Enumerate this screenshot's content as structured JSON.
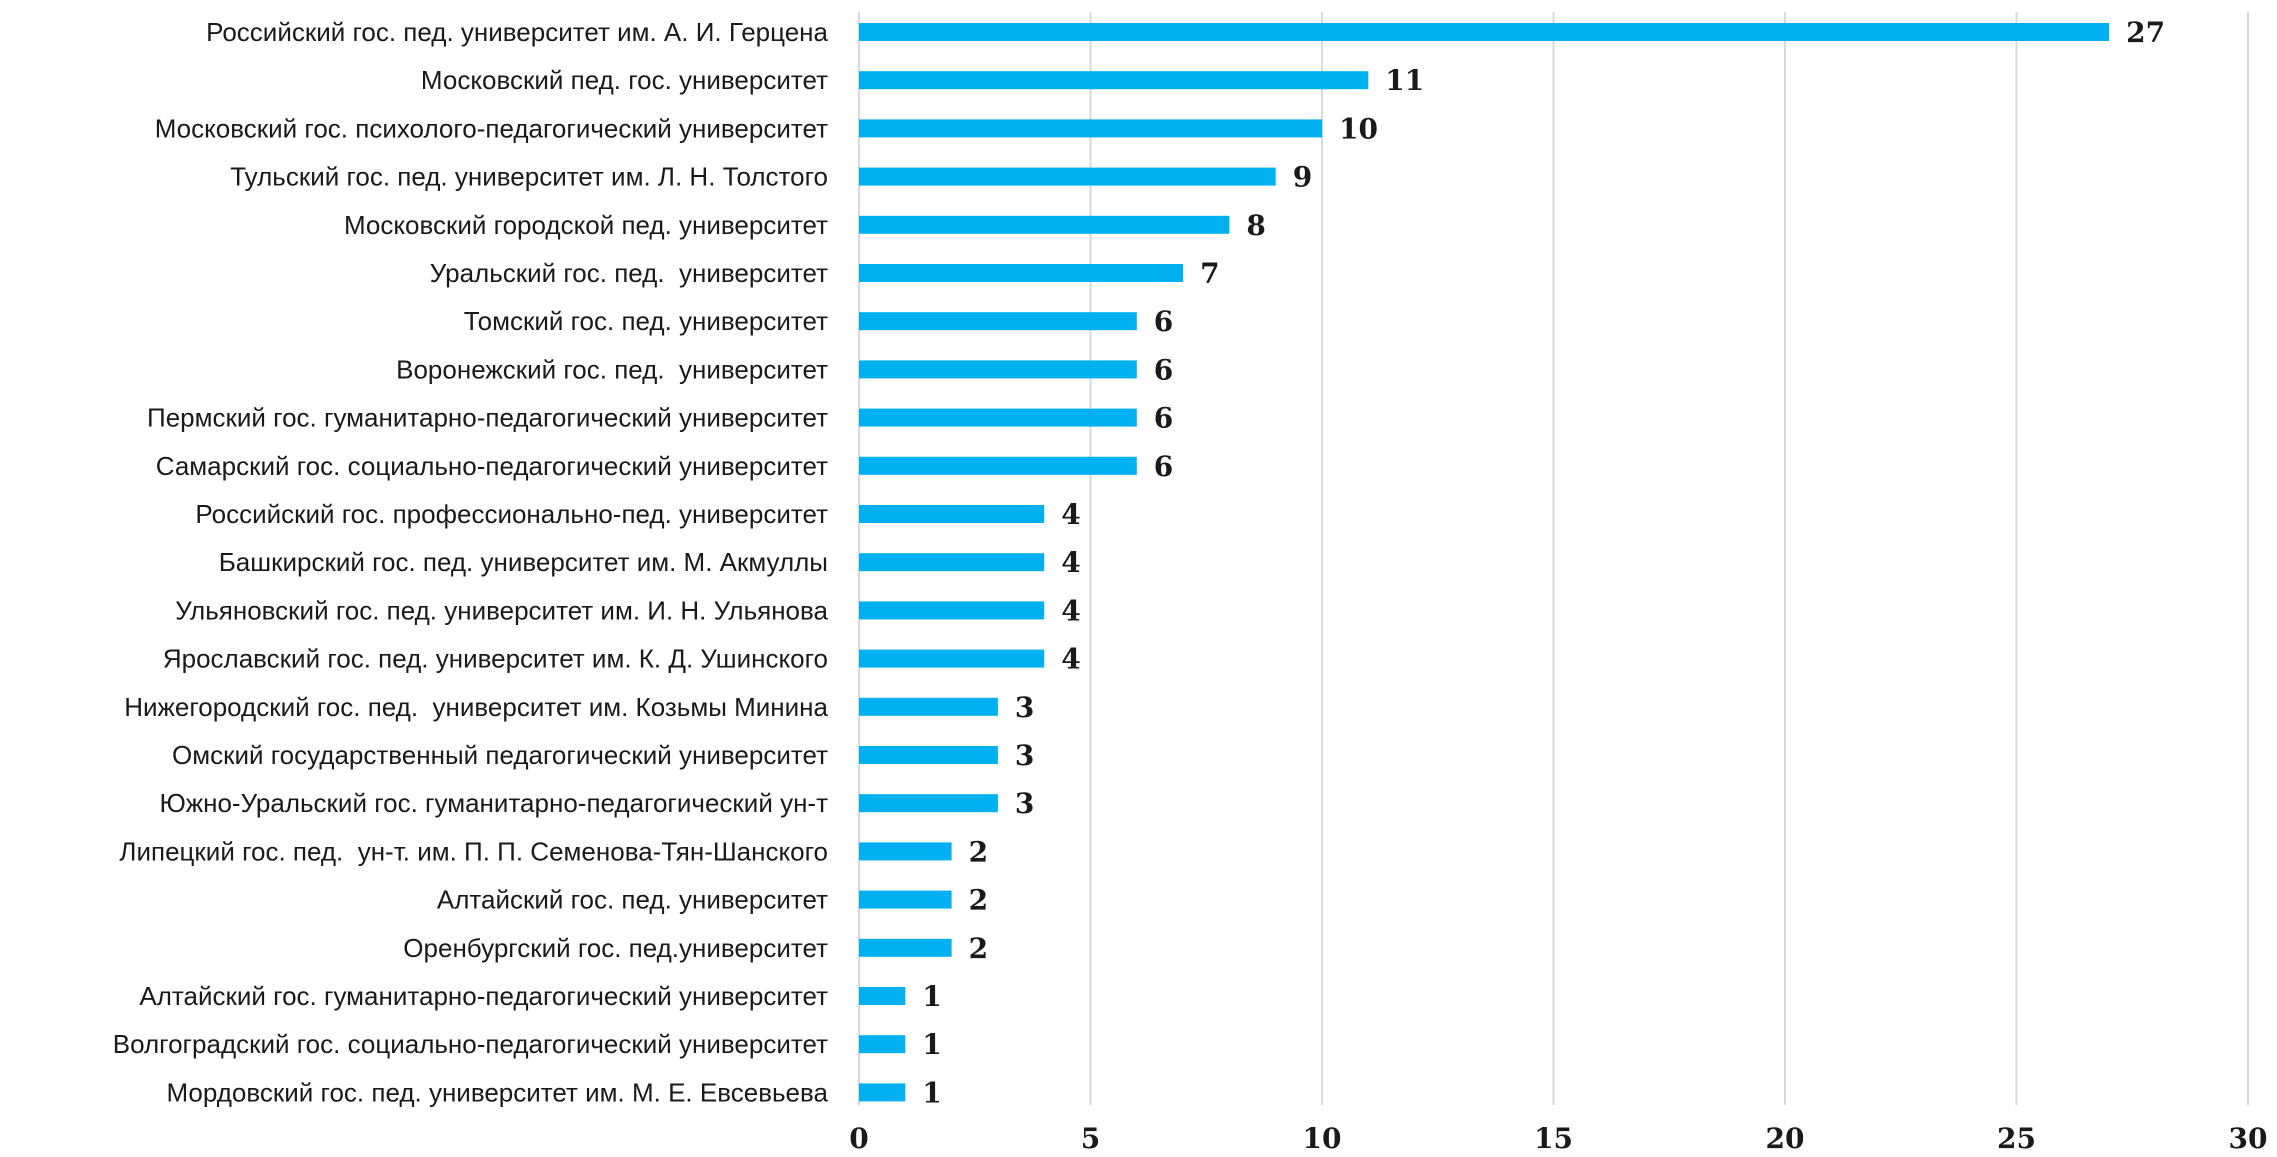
{
  "chart_data": {
    "type": "bar",
    "orientation": "horizontal",
    "categories": [
      "Российский гос. пед. университет им. А. И. Герцена",
      "Московский пед. гос. университет",
      "Московский гос. психолого-педагогический университет",
      "Тульский гос. пед. университет им. Л. Н. Толстого",
      "Московский городской пед. университет",
      "Уральский гос. пед.  университет",
      "Томский гос. пед. университет",
      "Воронежский гос. пед.  университет",
      "Пермский гос. гуманитарно-педагогический университет",
      "Самарский гос. социально-педагогический университет",
      "Российский гос. профессионально-пед. университет",
      "Башкирский гос. пед. университет им. М. Акмуллы",
      "Ульяновский гос. пед. университет им. И. Н. Ульянова",
      "Ярославский гос. пед. университет им. К. Д. Ушинского",
      "Нижегородский гос. пед.  университет им. Козьмы Минина",
      "Омский государственный педагогический университет",
      "Южно-Уральский гос. гуманитарно-педагогический ун-т",
      "Липецкий гос. пед.  ун-т. им. П. П. Семенова-Тян-Шанского",
      "Алтайский гос. пед. университет",
      "Оренбургский гос. пед.университет",
      "Алтайский гос. гуманитарно-педагогический университет",
      "Волгоградский гос. социально-педагогический университет",
      "Мордовский гос. пед. университет им. М. Е. Евсевьева"
    ],
    "values": [
      27,
      11,
      10,
      9,
      8,
      7,
      6,
      6,
      6,
      6,
      4,
      4,
      4,
      4,
      3,
      3,
      3,
      2,
      2,
      2,
      1,
      1,
      1
    ],
    "xlim": [
      0,
      30
    ],
    "xticks": [
      0,
      5,
      10,
      15,
      20,
      25,
      30
    ],
    "grid": true,
    "bar_color": "#00b0f0",
    "data_labels": true
  }
}
